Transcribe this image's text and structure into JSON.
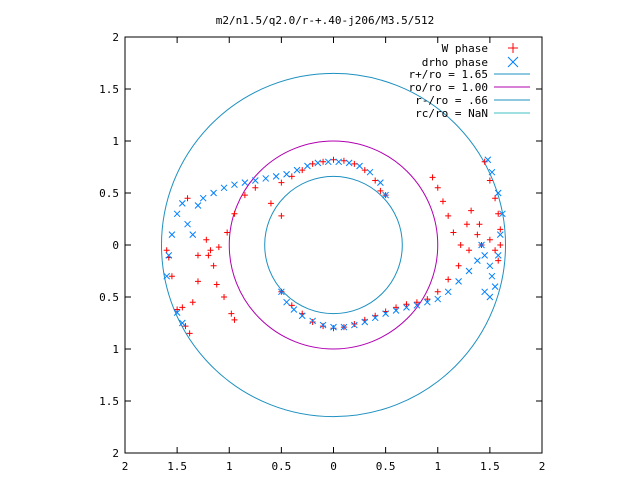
{
  "chart_data": {
    "type": "scatter",
    "title": "m2/n1.5/q2.0/r-+.40-j206/M3.5/512",
    "xlim": [
      -2,
      2
    ],
    "ylim": [
      -2,
      2
    ],
    "x_ticks": [
      {
        "v": -2,
        "label": "2"
      },
      {
        "v": -1.5,
        "label": "1.5"
      },
      {
        "v": -1,
        "label": "1"
      },
      {
        "v": -0.5,
        "label": "0.5"
      },
      {
        "v": 0,
        "label": "0"
      },
      {
        "v": 0.5,
        "label": "0.5"
      },
      {
        "v": 1,
        "label": "1"
      },
      {
        "v": 1.5,
        "label": "1.5"
      },
      {
        "v": 2,
        "label": "2"
      }
    ],
    "y_ticks": [
      {
        "v": 2,
        "label": "2"
      },
      {
        "v": 1.5,
        "label": "1.5"
      },
      {
        "v": 1,
        "label": "1"
      },
      {
        "v": 0.5,
        "label": "0.5"
      },
      {
        "v": 0,
        "label": "0"
      },
      {
        "v": -0.5,
        "label": "0.5"
      },
      {
        "v": -1,
        "label": "1"
      },
      {
        "v": -1.5,
        "label": "1.5"
      },
      {
        "v": -2,
        "label": "2"
      }
    ],
    "grid": false,
    "legend_position": "top-right",
    "series": [
      {
        "name": "W phase",
        "marker": "plus",
        "color": "#ff0000"
      },
      {
        "name": "drho phase",
        "marker": "cross",
        "color": "#0080ff"
      },
      {
        "name": "r+/ro = 1.65",
        "kind": "circle",
        "radius": 1.65,
        "color": "#1e90c0"
      },
      {
        "name": "ro/ro = 1.00",
        "kind": "circle",
        "radius": 1.0,
        "color": "#b000b0"
      },
      {
        "name": "r-/ro = .66",
        "kind": "circle",
        "radius": 0.66,
        "color": "#1e90c0"
      },
      {
        "name": "rc/ro = NaN",
        "kind": "line",
        "color": "#40c0c0"
      }
    ],
    "w_phase_points": [
      [
        -0.5,
        0.6
      ],
      [
        -0.4,
        0.66
      ],
      [
        -0.3,
        0.72
      ],
      [
        -0.2,
        0.78
      ],
      [
        -0.1,
        0.8
      ],
      [
        0,
        0.82
      ],
      [
        0.1,
        0.81
      ],
      [
        0.2,
        0.78
      ],
      [
        0.3,
        0.72
      ],
      [
        0.4,
        0.62
      ],
      [
        0.5,
        0.48
      ],
      [
        -0.75,
        0.55
      ],
      [
        -0.85,
        0.48
      ],
      [
        -0.95,
        0.3
      ],
      [
        -1.02,
        0.12
      ],
      [
        -1.1,
        -0.02
      ],
      [
        -1.2,
        -0.1
      ],
      [
        -1.3,
        -0.1
      ],
      [
        -1.22,
        0.05
      ],
      [
        -1.18,
        -0.05
      ],
      [
        -1.15,
        -0.2
      ],
      [
        -1.12,
        -0.38
      ],
      [
        -1.05,
        -0.5
      ],
      [
        -0.98,
        -0.66
      ],
      [
        -0.95,
        -0.72
      ],
      [
        -1.3,
        -0.35
      ],
      [
        -1.35,
        -0.55
      ],
      [
        -1.45,
        -0.6
      ],
      [
        -1.5,
        -0.62
      ],
      [
        -1.42,
        -0.78
      ],
      [
        -1.38,
        -0.85
      ],
      [
        -1.58,
        -0.12
      ],
      [
        -1.55,
        -0.3
      ],
      [
        -0.5,
        -0.45
      ],
      [
        -0.4,
        -0.58
      ],
      [
        -0.3,
        -0.66
      ],
      [
        -0.2,
        -0.74
      ],
      [
        -0.1,
        -0.78
      ],
      [
        0,
        -0.8
      ],
      [
        0.1,
        -0.79
      ],
      [
        0.2,
        -0.76
      ],
      [
        0.3,
        -0.72
      ],
      [
        0.4,
        -0.68
      ],
      [
        0.5,
        -0.64
      ],
      [
        0.6,
        -0.6
      ],
      [
        0.7,
        -0.57
      ],
      [
        0.8,
        -0.55
      ],
      [
        0.9,
        -0.52
      ],
      [
        1.0,
        -0.45
      ],
      [
        1.1,
        -0.33
      ],
      [
        1.2,
        -0.2
      ],
      [
        1.3,
        -0.05
      ],
      [
        1.38,
        0.1
      ],
      [
        1.42,
        0.0
      ],
      [
        0.95,
        0.65
      ],
      [
        1.0,
        0.55
      ],
      [
        1.05,
        0.42
      ],
      [
        1.1,
        0.28
      ],
      [
        1.15,
        0.12
      ],
      [
        1.22,
        0.0
      ],
      [
        1.28,
        0.2
      ],
      [
        1.32,
        0.33
      ],
      [
        1.4,
        0.2
      ],
      [
        1.5,
        0.05
      ],
      [
        1.55,
        -0.05
      ],
      [
        1.45,
        0.8
      ],
      [
        1.5,
        0.62
      ],
      [
        1.55,
        0.45
      ],
      [
        1.58,
        0.3
      ],
      [
        1.6,
        0.15
      ],
      [
        1.6,
        0.0
      ],
      [
        1.58,
        -0.15
      ],
      [
        -0.6,
        0.4
      ],
      [
        -0.5,
        0.28
      ],
      [
        0.45,
        0.52
      ],
      [
        -1.4,
        0.45
      ],
      [
        -1.6,
        -0.05
      ]
    ],
    "drho_points": [
      [
        -1.3,
        0.38
      ],
      [
        -1.25,
        0.45
      ],
      [
        -1.15,
        0.5
      ],
      [
        -1.05,
        0.55
      ],
      [
        -0.95,
        0.58
      ],
      [
        -0.85,
        0.6
      ],
      [
        -0.75,
        0.62
      ],
      [
        -0.65,
        0.64
      ],
      [
        -0.55,
        0.66
      ],
      [
        -0.45,
        0.68
      ],
      [
        -0.35,
        0.72
      ],
      [
        -0.25,
        0.76
      ],
      [
        -0.15,
        0.79
      ],
      [
        -0.05,
        0.8
      ],
      [
        0.05,
        0.8
      ],
      [
        0.15,
        0.79
      ],
      [
        0.25,
        0.76
      ],
      [
        0.35,
        0.7
      ],
      [
        0.45,
        0.6
      ],
      [
        0.5,
        0.48
      ],
      [
        -1.45,
        0.4
      ],
      [
        -1.5,
        0.3
      ],
      [
        -1.55,
        0.1
      ],
      [
        -1.58,
        -0.1
      ],
      [
        -1.6,
        -0.3
      ],
      [
        -1.5,
        -0.65
      ],
      [
        -1.45,
        -0.75
      ],
      [
        -1.35,
        0.1
      ],
      [
        -1.4,
        0.2
      ],
      [
        -0.5,
        -0.45
      ],
      [
        -0.45,
        -0.55
      ],
      [
        -0.38,
        -0.62
      ],
      [
        -0.3,
        -0.68
      ],
      [
        -0.2,
        -0.73
      ],
      [
        -0.1,
        -0.77
      ],
      [
        0,
        -0.79
      ],
      [
        0.1,
        -0.79
      ],
      [
        0.2,
        -0.77
      ],
      [
        0.3,
        -0.74
      ],
      [
        0.4,
        -0.7
      ],
      [
        0.5,
        -0.66
      ],
      [
        0.6,
        -0.63
      ],
      [
        0.7,
        -0.6
      ],
      [
        0.8,
        -0.58
      ],
      [
        0.9,
        -0.55
      ],
      [
        1.0,
        -0.52
      ],
      [
        1.1,
        -0.45
      ],
      [
        1.2,
        -0.35
      ],
      [
        1.3,
        -0.25
      ],
      [
        1.38,
        -0.15
      ],
      [
        1.42,
        0.0
      ],
      [
        1.45,
        -0.1
      ],
      [
        1.5,
        -0.2
      ],
      [
        1.52,
        -0.3
      ],
      [
        1.55,
        -0.4
      ],
      [
        1.58,
        -0.1
      ],
      [
        1.6,
        0.1
      ],
      [
        1.62,
        0.3
      ],
      [
        1.58,
        0.5
      ],
      [
        1.52,
        0.7
      ],
      [
        1.48,
        0.82
      ],
      [
        1.45,
        -0.45
      ],
      [
        1.5,
        -0.5
      ]
    ]
  }
}
